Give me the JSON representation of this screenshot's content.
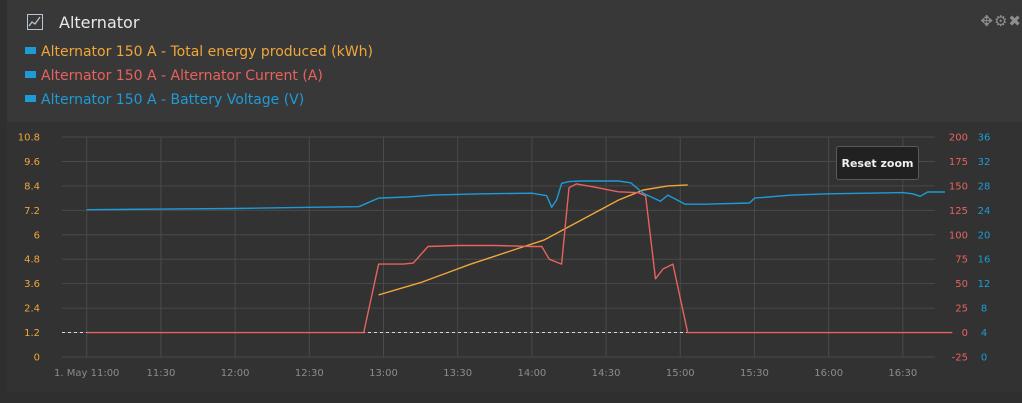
{
  "widget": {
    "title": "Alternator",
    "title_icon": "line-chart-icon",
    "tools_icons": [
      "move-icon",
      "gear-icon",
      "close-icon"
    ],
    "reset_zoom_label": "Reset zoom"
  },
  "colors": {
    "energy": "#f0a63a",
    "current": "#e8625e",
    "voltage": "#1e9bd7",
    "grid": "#4a4a4a",
    "axis_text": "#8c8c8c"
  },
  "legend": [
    {
      "label": "Alternator 150 A - Total energy produced (kWh)",
      "color": "#f0a63a"
    },
    {
      "label": "Alternator 150 A - Alternator Current (A)",
      "color": "#e8625e"
    },
    {
      "label": "Alternator 150 A - Battery Voltage (V)",
      "color": "#1e9bd7"
    }
  ],
  "chart_data": {
    "type": "line",
    "x_ticks": [
      "1. May 11:00",
      "11:30",
      "12:00",
      "12:30",
      "13:00",
      "13:30",
      "14:00",
      "14:30",
      "15:00",
      "15:30",
      "16:00",
      "16:30"
    ],
    "x_tick_minutes": [
      660,
      690,
      720,
      750,
      780,
      810,
      840,
      870,
      900,
      930,
      960,
      990
    ],
    "xlim_minutes": [
      650,
      1003
    ],
    "y_axes": [
      {
        "id": "energy",
        "side": "left",
        "range": [
          0,
          10.8
        ],
        "ticks": [
          "10.8",
          "9.6",
          "8.4",
          "7.2",
          "6",
          "4.8",
          "3.6",
          "2.4",
          "1.2",
          "0"
        ]
      },
      {
        "id": "current",
        "side": "right",
        "range": [
          -25,
          200
        ],
        "ticks": [
          "200",
          "175",
          "150",
          "125",
          "100",
          "75",
          "50",
          "25",
          "0",
          "-25"
        ]
      },
      {
        "id": "voltage",
        "side": "right",
        "range": [
          0,
          36
        ],
        "ticks": [
          "36",
          "32",
          "28",
          "24",
          "20",
          "16",
          "12",
          "8",
          "4",
          "0"
        ]
      }
    ],
    "grid": true,
    "zero_line_dashed": true,
    "series": [
      {
        "name": "Alternator 150 A - Total energy produced (kWh)",
        "axis": "energy",
        "color": "#f0a63a",
        "x": [
          "12:58",
          "13:05",
          "13:15",
          "13:25",
          "13:35",
          "13:45",
          "13:55",
          "14:05",
          "14:15",
          "14:25",
          "14:35",
          "14:45",
          "14:55",
          "15:03"
        ],
        "y": [
          3.05,
          3.3,
          3.65,
          4.1,
          4.55,
          4.95,
          5.35,
          5.75,
          6.4,
          7.05,
          7.7,
          8.2,
          8.4,
          8.45
        ]
      },
      {
        "name": "Alternator 150 A - Alternator Current (A)",
        "axis": "current",
        "color": "#e8625e",
        "x": [
          "11:00",
          "12:52",
          "12:58",
          "13:08",
          "13:12",
          "13:18",
          "13:30",
          "13:45",
          "14:00",
          "14:04",
          "14:07",
          "14:12",
          "14:15",
          "14:18",
          "14:25",
          "14:35",
          "14:43",
          "14:46",
          "14:50",
          "14:53",
          "14:57",
          "15:03",
          "15:15",
          "16:00",
          "16:50"
        ],
        "y": [
          0,
          0,
          70,
          70,
          71,
          88,
          89,
          89,
          88,
          88,
          75,
          70,
          148,
          152,
          149,
          144,
          143,
          140,
          55,
          65,
          70,
          0,
          0,
          0,
          0
        ]
      },
      {
        "name": "Alternator 150 A - Battery Voltage (V)",
        "axis": "voltage",
        "color": "#1e9bd7",
        "x": [
          "11:00",
          "11:30",
          "12:00",
          "12:30",
          "12:50",
          "12:58",
          "13:10",
          "13:20",
          "13:40",
          "14:00",
          "14:06",
          "14:08",
          "14:10",
          "14:12",
          "14:15",
          "14:20",
          "14:35",
          "14:40",
          "14:45",
          "14:52",
          "14:55",
          "15:02",
          "15:10",
          "15:28",
          "15:30",
          "15:45",
          "16:00",
          "16:30",
          "16:34",
          "16:37",
          "16:40",
          "16:47"
        ],
        "y": [
          24.1,
          24.2,
          24.3,
          24.5,
          24.6,
          26.0,
          26.2,
          26.5,
          26.7,
          26.8,
          26.4,
          24.5,
          25.7,
          28.4,
          28.7,
          28.8,
          28.8,
          28.5,
          26.8,
          25.5,
          26.5,
          25.0,
          25.0,
          25.2,
          26.0,
          26.5,
          26.7,
          26.9,
          26.7,
          26.3,
          27.0,
          27.0
        ]
      }
    ]
  }
}
